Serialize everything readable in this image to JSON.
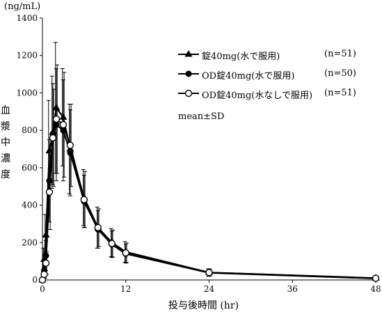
{
  "chart_data": {
    "type": "line",
    "y_unit": "(ng/mL)",
    "ylabel": "血漿中濃度",
    "xlabel": "投与後時間 (hr)",
    "xlim": [
      0,
      48
    ],
    "ylim": [
      0,
      1400
    ],
    "x_ticks": [
      0,
      12,
      24,
      36,
      48
    ],
    "y_ticks": [
      0,
      200,
      400,
      600,
      800,
      1000,
      1200,
      1400
    ],
    "error_bars": "mean±SD",
    "legend_position": "top-right",
    "series": [
      {
        "name": "錠40mg(水で服用)",
        "n_label": "(n=51)",
        "marker": "triangle-filled",
        "x": [
          0,
          0.25,
          0.5,
          1,
          1.5,
          2,
          3,
          4,
          6,
          8,
          10,
          12,
          24,
          48
        ],
        "y": [
          0,
          110,
          240,
          690,
          790,
          920,
          870,
          700,
          440,
          280,
          200,
          150,
          40,
          10
        ],
        "sd": [
          0,
          60,
          110,
          270,
          300,
          350,
          260,
          240,
          150,
          110,
          75,
          55,
          20,
          5
        ]
      },
      {
        "name": "OD錠40mg(水で服用)",
        "n_label": "(n=50)",
        "marker": "circle-filled",
        "x": [
          0,
          0.25,
          0.5,
          1,
          1.5,
          2,
          3,
          4,
          6,
          8,
          10,
          12,
          24,
          48
        ],
        "y": [
          0,
          50,
          130,
          530,
          780,
          830,
          800,
          680,
          420,
          270,
          190,
          140,
          38,
          8
        ],
        "sd": [
          0,
          30,
          80,
          220,
          270,
          300,
          270,
          230,
          140,
          100,
          70,
          50,
          18,
          4
        ]
      },
      {
        "name": "OD錠40mg(水なしで服用)",
        "n_label": "(n=51)",
        "marker": "circle-open",
        "x": [
          0,
          0.25,
          0.5,
          1,
          1.5,
          2,
          3,
          4,
          6,
          8,
          10,
          12,
          24,
          48
        ],
        "y": [
          0,
          30,
          90,
          470,
          760,
          860,
          830,
          720,
          430,
          280,
          195,
          145,
          40,
          9
        ],
        "sd": [
          0,
          20,
          60,
          200,
          260,
          290,
          280,
          220,
          150,
          100,
          72,
          52,
          19,
          4
        ]
      }
    ]
  }
}
